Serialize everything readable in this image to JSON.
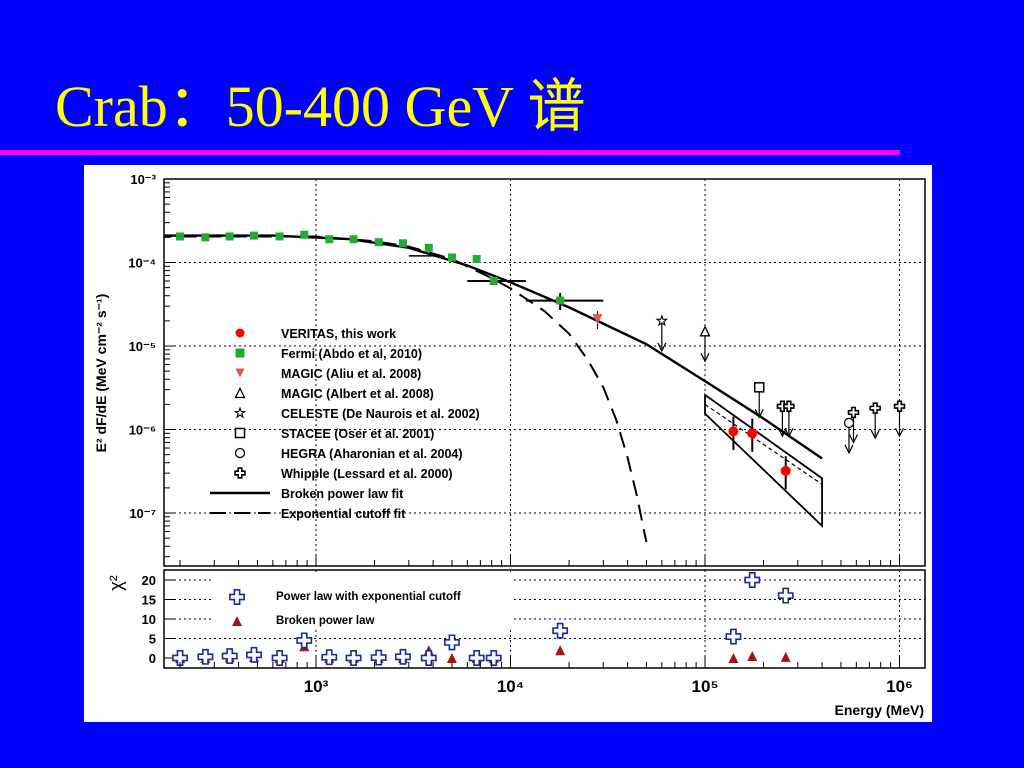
{
  "slide": {
    "title": "Crab：50-400 GeV 谱"
  },
  "colors": {
    "background": "#0000ff",
    "title": "#ffff00",
    "rule": "#ff00ff",
    "veritas": "#ff0000",
    "fermi": "#22aa33",
    "magic": "#dd5555",
    "chi_pl": "#1a2a9a",
    "chi_bpl": "#aa1111"
  },
  "chart_data": [
    {
      "type": "scatter",
      "panel": "spectrum",
      "title": "",
      "xlabel": "",
      "ylabel": "E² dF/dE (MeV cm⁻² s⁻¹)",
      "xscale": "log",
      "yscale": "log",
      "xlim": [
        150,
        1300000
      ],
      "ylim": [
        2e-08,
        0.001
      ],
      "grid": true,
      "y_ticks": [
        "10⁻³",
        "10⁻⁴",
        "10⁻⁵",
        "10⁻⁶",
        "10⁻⁷"
      ],
      "legend_position": "center-left",
      "legend": [
        {
          "label": "VERITAS, this work",
          "marker": "filled-circle"
        },
        {
          "label": "Fermi (Abdo et al, 2010)",
          "marker": "filled-square"
        },
        {
          "label": "MAGIC (Aliu et al. 2008)",
          "marker": "filled-triangle-down"
        },
        {
          "label": "MAGIC (Albert et al. 2008)",
          "marker": "open-triangle"
        },
        {
          "label": "CELESTE (De Naurois et al. 2002)",
          "marker": "open-star"
        },
        {
          "label": "STACEE (Oser et al. 2001)",
          "marker": "open-square"
        },
        {
          "label": "HEGRA (Aharonian et al. 2004)",
          "marker": "open-circle"
        },
        {
          "label": "Whipple (Lessard et al. 2000)",
          "marker": "open-cross"
        },
        {
          "label": "Broken power law fit",
          "marker": "solid-line"
        },
        {
          "label": "Exponential cutoff fit",
          "marker": "dashed-line"
        }
      ],
      "series": [
        {
          "name": "Fermi (Abdo et al, 2010)",
          "points": [
            [
              200,
              0.000205
            ],
            [
              270,
              0.0002
            ],
            [
              360,
              0.000205
            ],
            [
              480,
              0.00021
            ],
            [
              650,
              0.000205
            ],
            [
              870,
              0.000215
            ],
            [
              1170,
              0.00019
            ],
            [
              1560,
              0.00019
            ],
            [
              2100,
              0.000175
            ],
            [
              2800,
              0.00017
            ],
            [
              3800,
              0.00015
            ],
            [
              5000,
              0.000115
            ],
            [
              6700,
              0.00011
            ],
            [
              8200,
              6e-05
            ],
            [
              18000,
              3.5e-05
            ]
          ]
        },
        {
          "name": "VERITAS, this work",
          "points": [
            [
              140000,
              9.5e-07
            ],
            [
              175000,
              9e-07
            ],
            [
              260000,
              3.2e-07
            ]
          ]
        },
        {
          "name": "MAGIC (Aliu et al. 2008)",
          "points": [
            [
              28000,
              2.1e-05
            ]
          ]
        },
        {
          "name": "CELESTE (De Naurois et al. 2002)",
          "upper_limits": [
            [
              60000,
              2e-05
            ]
          ]
        },
        {
          "name": "MAGIC (Albert et al. 2008)",
          "upper_limits": [
            [
              100000,
              1.5e-05
            ]
          ]
        },
        {
          "name": "STACEE (Oser et al. 2001)",
          "upper_limits": [
            [
              190000,
              3.2e-06
            ]
          ]
        },
        {
          "name": "Whipple (Lessard et al. 2000)",
          "upper_limits": [
            [
              250000,
              1.9e-06
            ],
            [
              270000,
              1.9e-06
            ],
            [
              580000,
              1.6e-06
            ],
            [
              750000,
              1.8e-06
            ],
            [
              1000000,
              1.9e-06
            ]
          ]
        },
        {
          "name": "HEGRA (Aharonian et al. 2004)",
          "upper_limits": [
            [
              550000,
              1.2e-06
            ]
          ]
        },
        {
          "name": "Broken power law fit",
          "points": [
            [
              150,
              0.00021
            ],
            [
              600,
              0.00021
            ],
            [
              1500,
              0.00019
            ],
            [
              3000,
              0.00015
            ],
            [
              6000,
              9.2e-05
            ],
            [
              10000,
              5.8e-05
            ],
            [
              20000,
              2.9e-05
            ],
            [
              50000,
              1.05e-05
            ],
            [
              100000,
              3.8e-06
            ],
            [
              200000,
              1.35e-06
            ],
            [
              400000,
              4.5e-07
            ]
          ]
        },
        {
          "name": "Exponential cutoff fit",
          "points": [
            [
              150,
              0.000205
            ],
            [
              1000,
              0.000205
            ],
            [
              2000,
              0.00018
            ],
            [
              3000,
              0.000155
            ],
            [
              5000,
              0.00011
            ],
            [
              8000,
              6.5e-05
            ],
            [
              10000,
              4.9e-05
            ],
            [
              15000,
              2.6e-05
            ],
            [
              20000,
              1.4e-05
            ],
            [
              25000,
              6.8e-06
            ],
            [
              30000,
              3.2e-06
            ],
            [
              35000,
              1.3e-06
            ],
            [
              40000,
              4.6e-07
            ],
            [
              45000,
              1.5e-07
            ],
            [
              48000,
              7e-08
            ],
            [
              50000,
              4.5e-08
            ]
          ]
        }
      ]
    },
    {
      "type": "scatter",
      "panel": "residuals",
      "ylabel": "χ²",
      "xlabel": "Energy (MeV)",
      "xscale": "log",
      "xlim": [
        150,
        1300000
      ],
      "ylim": [
        -2,
        23
      ],
      "y_ticks": [
        "20",
        "15",
        "10",
        "5",
        "0"
      ],
      "x_ticks": [
        "10³",
        "10⁴",
        "10⁵",
        "10⁶"
      ],
      "legend": [
        {
          "label": "Power law with exponential cutoff",
          "marker": "open-cross"
        },
        {
          "label": "Broken power law",
          "marker": "filled-triangle"
        }
      ],
      "series": [
        {
          "name": "Power law with exponential cutoff",
          "points": [
            [
              200,
              0
            ],
            [
              270,
              0.3
            ],
            [
              360,
              0.5
            ],
            [
              480,
              0.8
            ],
            [
              650,
              0
            ],
            [
              870,
              4.5
            ],
            [
              1170,
              0.2
            ],
            [
              1560,
              0
            ],
            [
              2100,
              0.1
            ],
            [
              2800,
              0.3
            ],
            [
              3800,
              0
            ],
            [
              5000,
              4
            ],
            [
              6700,
              0
            ],
            [
              8200,
              0
            ],
            [
              18000,
              7
            ],
            [
              140000,
              5.5
            ],
            [
              175000,
              20
            ],
            [
              260000,
              16
            ]
          ]
        },
        {
          "name": "Broken power law",
          "points": [
            [
              200,
              0
            ],
            [
              270,
              0
            ],
            [
              360,
              0.2
            ],
            [
              480,
              0.3
            ],
            [
              650,
              0
            ],
            [
              870,
              3
            ],
            [
              1170,
              0
            ],
            [
              1560,
              0
            ],
            [
              2100,
              0
            ],
            [
              2800,
              0
            ],
            [
              3800,
              2
            ],
            [
              5000,
              0
            ],
            [
              6700,
              0
            ],
            [
              8200,
              0
            ],
            [
              18000,
              2
            ],
            [
              140000,
              0
            ],
            [
              175000,
              0.5
            ],
            [
              260000,
              0.3
            ]
          ]
        }
      ]
    }
  ]
}
